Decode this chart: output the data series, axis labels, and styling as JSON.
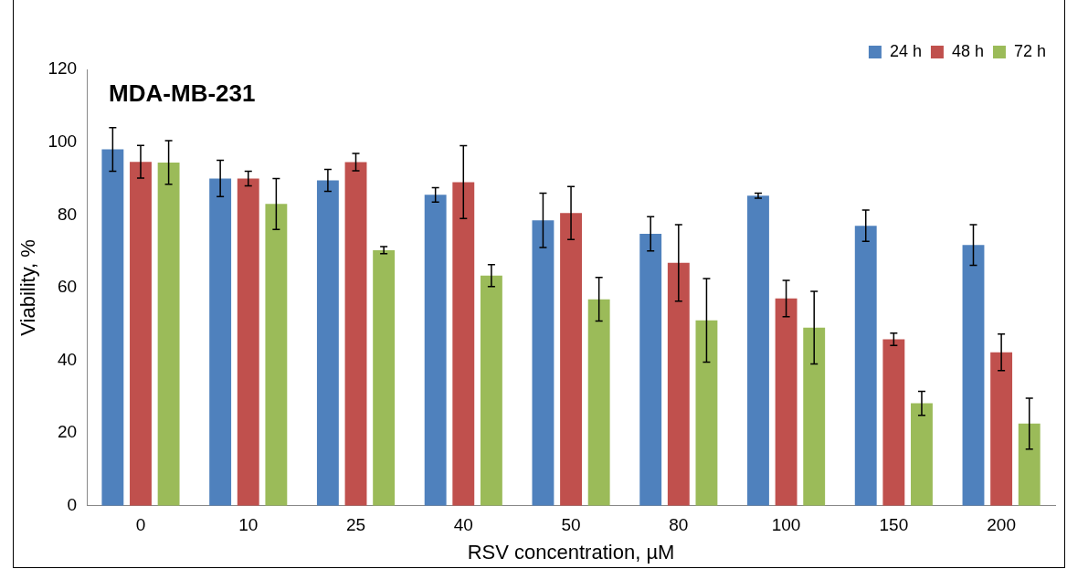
{
  "chart_data": {
    "type": "bar",
    "title": "MDA-MB-231",
    "xlabel": "RSV concentration, µM",
    "ylabel": "Viability, %",
    "categories": [
      "0",
      "10",
      "25",
      "40",
      "50",
      "80",
      "100",
      "150",
      "200"
    ],
    "series": [
      {
        "name": "24 h",
        "color": "#4f81bd",
        "values": [
          98,
          90,
          89.5,
          85.5,
          78.5,
          74.8,
          85.3,
          77,
          71.7
        ],
        "errors": [
          6,
          5,
          3,
          2,
          7.5,
          4.7,
          0.7,
          4.3,
          5.6
        ]
      },
      {
        "name": "48 h",
        "color": "#c0504d",
        "values": [
          94.6,
          90,
          94.5,
          89,
          80.5,
          66.8,
          57,
          45.8,
          42.2
        ],
        "errors": [
          4.5,
          2,
          2.4,
          10,
          7.3,
          10.5,
          5,
          1.7,
          5
        ]
      },
      {
        "name": "72 h",
        "color": "#9bbb59",
        "values": [
          94.4,
          83,
          70.3,
          63.3,
          56.8,
          51,
          49,
          28.2,
          22.6
        ],
        "errors": [
          6,
          7,
          1,
          3,
          6,
          11.5,
          10,
          3.3,
          7
        ]
      }
    ],
    "ylim": [
      0,
      120
    ],
    "yticks": [
      0,
      20,
      40,
      60,
      80,
      100,
      120
    ],
    "grid": false,
    "legend": "top right"
  }
}
